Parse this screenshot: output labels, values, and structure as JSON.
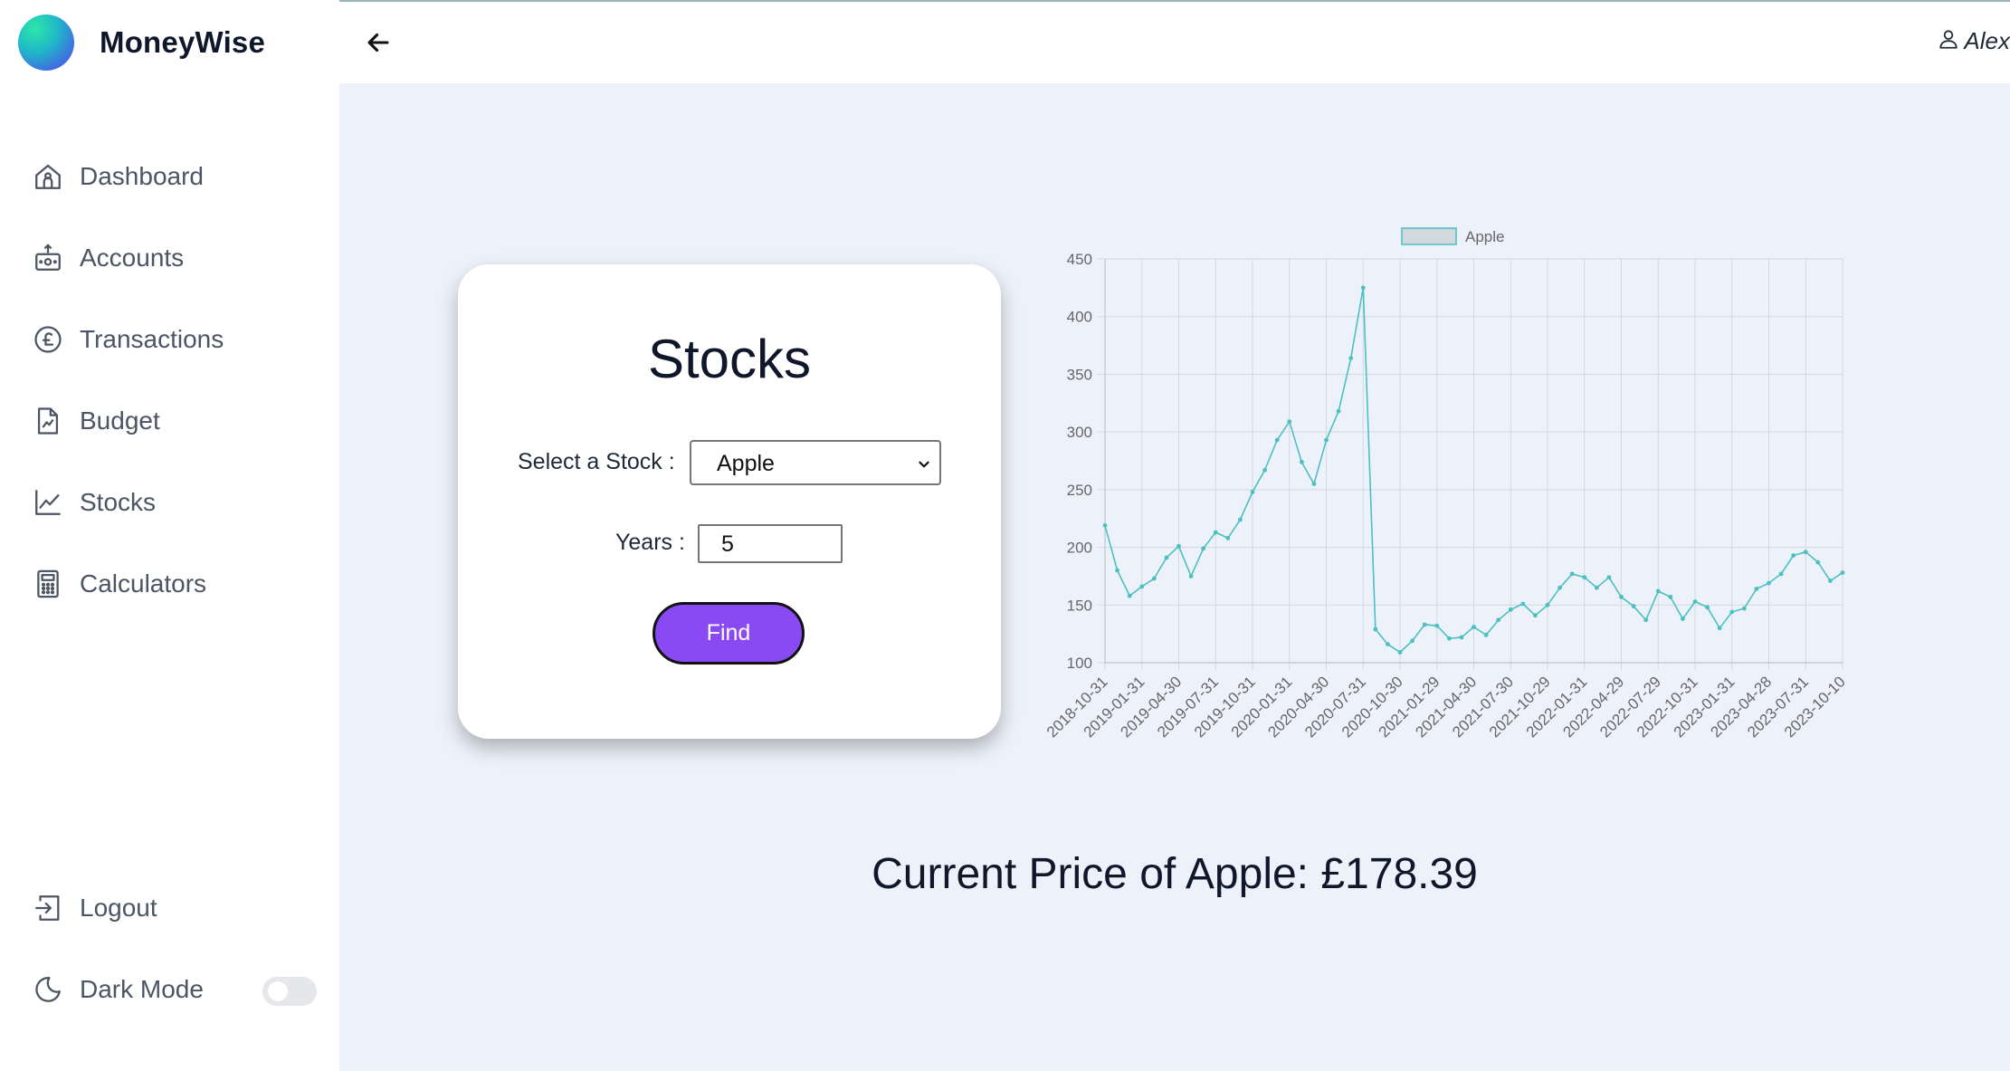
{
  "app": {
    "name": "MoneyWise"
  },
  "header": {
    "user_name": "Alex"
  },
  "sidebar": {
    "items": [
      {
        "label": "Dashboard",
        "icon": "home-icon"
      },
      {
        "label": "Accounts",
        "icon": "wallet-icon"
      },
      {
        "label": "Transactions",
        "icon": "pound-icon"
      },
      {
        "label": "Budget",
        "icon": "document-chart-icon"
      },
      {
        "label": "Stocks",
        "icon": "line-chart-icon"
      },
      {
        "label": "Calculators",
        "icon": "calculator-icon"
      }
    ],
    "bottom": [
      {
        "label": "Logout",
        "icon": "logout-icon"
      },
      {
        "label": "Dark Mode",
        "icon": "moon-icon",
        "toggle_on": false
      }
    ]
  },
  "stocks_card": {
    "title": "Stocks",
    "select_label": "Select a Stock :",
    "selected_stock": "Apple",
    "years_label": "Years :",
    "years_value": "5",
    "find_label": "Find"
  },
  "current_price": {
    "prefix": "Current Price of Apple: ",
    "value": "£178.39"
  },
  "colors": {
    "accent": "#8a4af3",
    "line": "#4bc0c0",
    "background": "#edf2fa"
  },
  "chart_data": {
    "type": "line",
    "legend": [
      "Apple"
    ],
    "legend_position": "top",
    "grid": true,
    "ylim": [
      100,
      450
    ],
    "yticks": [
      100,
      150,
      200,
      250,
      300,
      350,
      400,
      450
    ],
    "xtick_labels": [
      "2018-10-31",
      "2019-01-31",
      "2019-04-30",
      "2019-07-31",
      "2019-10-31",
      "2020-01-31",
      "2020-04-30",
      "2020-07-31",
      "2020-10-30",
      "2021-01-29",
      "2021-04-30",
      "2021-07-30",
      "2021-10-29",
      "2022-01-31",
      "2022-04-29",
      "2022-07-29",
      "2022-10-31",
      "2023-01-31",
      "2023-04-28",
      "2023-07-31",
      "2023-10-10"
    ],
    "series": [
      {
        "name": "Apple",
        "values": [
          219,
          180,
          158,
          166,
          173,
          191,
          201,
          175,
          199,
          213,
          208,
          224,
          248,
          267,
          293,
          309,
          274,
          255,
          293,
          318,
          364,
          425,
          129,
          116,
          109,
          119,
          133,
          132,
          121,
          122,
          131,
          124,
          137,
          146,
          151,
          141,
          150,
          165,
          177,
          174,
          165,
          174,
          157,
          149,
          137,
          162,
          157,
          138,
          153,
          148,
          130,
          144,
          147,
          164,
          169,
          177,
          193,
          196,
          187,
          171,
          178
        ]
      }
    ]
  }
}
